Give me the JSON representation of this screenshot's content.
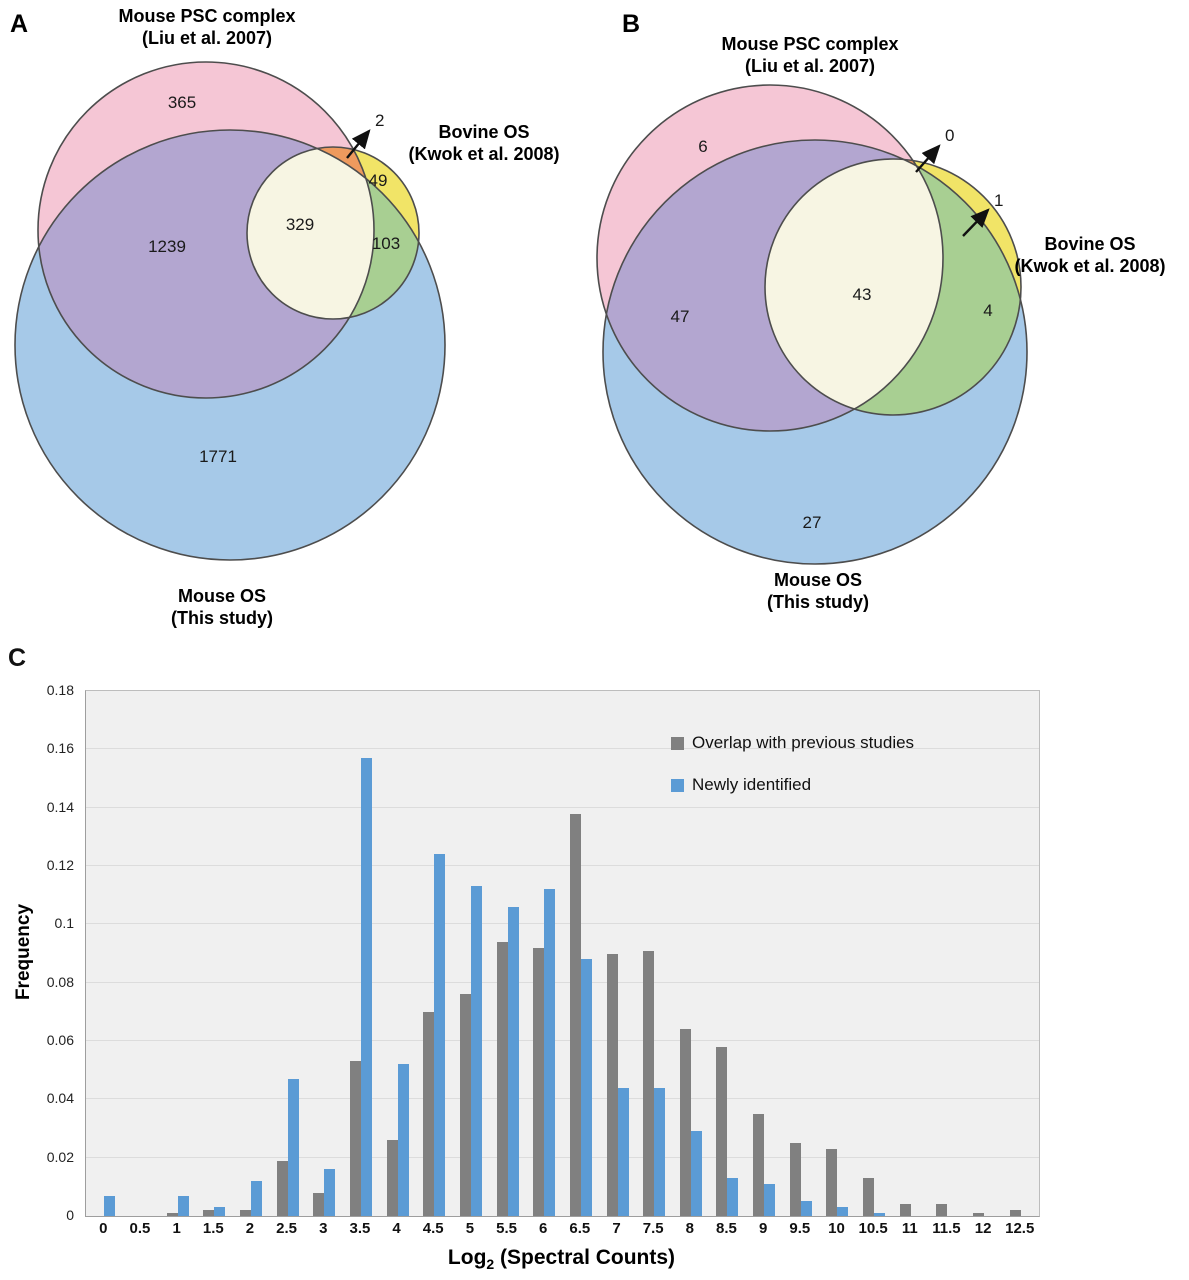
{
  "figure": {
    "panel_a": {
      "label": "A",
      "psc_title_line1": "Mouse PSC complex",
      "psc_title_line2": "(Liu et al. 2007)",
      "bovine_title_line1": "Bovine OS",
      "bovine_title_line2": "(Kwok et al. 2008)",
      "mouse_title_line1": "Mouse OS",
      "mouse_title_line2": "(This study)",
      "counts": {
        "psc_only": "365",
        "psc_bovine": "2",
        "bovine_only": "49",
        "psc_mouse": "1239",
        "triple": "329",
        "bovine_mouse": "103",
        "mouse_only": "1771"
      }
    },
    "panel_b": {
      "label": "B",
      "psc_title_line1": "Mouse PSC complex",
      "psc_title_line2": "(Liu et al. 2007)",
      "bovine_title_line1": "Bovine OS",
      "bovine_title_line2": "(Kwok et al. 2008)",
      "mouse_title_line1": "Mouse OS",
      "mouse_title_line2": "(This study)",
      "counts": {
        "psc_only": "6",
        "psc_bovine": "0",
        "bovine_only": "1",
        "psc_mouse": "47",
        "triple": "43",
        "bovine_mouse": "4",
        "mouse_only": "27"
      }
    },
    "panel_c": {
      "label": "C",
      "ylabel": "Frequency",
      "xlabel_main": "Log",
      "xlabel_sub": "2",
      "xlabel_rest": " (Spectral Counts)"
    }
  },
  "colors": {
    "pink": "#f5c6d5",
    "purple": "#b3a6d0",
    "blue": "#a6c9e8",
    "yellow": "#f1e467",
    "green": "#a8cf92",
    "cream": "#f7f5e3",
    "orange": "#ee9a5e",
    "outline": "#4d4d4d",
    "arrow": "#111111"
  },
  "chart_data": [
    {
      "type": "venn",
      "panel": "A",
      "sets": [
        "Mouse PSC complex (Liu et al. 2007)",
        "Mouse OS (This study)",
        "Bovine OS (Kwok et al. 2008)"
      ],
      "regions": {
        "psc_only": 365,
        "psc_and_bovine_only": 2,
        "bovine_only": 49,
        "psc_and_mouseos_only": 1239,
        "triple_overlap": 329,
        "bovine_and_mouseos_only": 103,
        "mouseos_only": 1771
      }
    },
    {
      "type": "venn",
      "panel": "B",
      "sets": [
        "Mouse PSC complex (Liu et al. 2007)",
        "Mouse OS (This study)",
        "Bovine OS (Kwok et al. 2008)"
      ],
      "regions": {
        "psc_only": 6,
        "psc_and_bovine_only": 0,
        "bovine_only": 1,
        "psc_and_mouseos_only": 47,
        "triple_overlap": 43,
        "bovine_and_mouseos_only": 4,
        "mouseos_only": 27
      }
    },
    {
      "type": "bar",
      "panel": "C",
      "title": "",
      "xlabel": "Log2 (Spectral Counts)",
      "ylabel": "Frequency",
      "ylim": [
        0,
        0.18
      ],
      "ytick_step": 0.02,
      "grid": true,
      "legend_position": "inside top-right",
      "categories": [
        "0",
        "0.5",
        "1",
        "1.5",
        "2",
        "2.5",
        "3",
        "3.5",
        "4",
        "4.5",
        "5",
        "5.5",
        "6",
        "6.5",
        "7",
        "7.5",
        "8",
        "8.5",
        "9",
        "9.5",
        "10",
        "10.5",
        "11",
        "11.5",
        "12",
        "12.5"
      ],
      "series": [
        {
          "key": "overlap",
          "name": "Overlap with previous studies",
          "color": "#808080",
          "values": [
            0,
            0,
            0.001,
            0.002,
            0.002,
            0.019,
            0.008,
            0.053,
            0.026,
            0.07,
            0.076,
            0.094,
            0.092,
            0.138,
            0.09,
            0.091,
            0.064,
            0.058,
            0.035,
            0.025,
            0.023,
            0.013,
            0.004,
            0.004,
            0.001,
            0.002
          ]
        },
        {
          "key": "newly",
          "name": "Newly identified",
          "color": "#5b9bd5",
          "values": [
            0.007,
            0,
            0.007,
            0.003,
            0.012,
            0.047,
            0.016,
            0.157,
            0.052,
            0.124,
            0.113,
            0.106,
            0.112,
            0.088,
            0.044,
            0.044,
            0.029,
            0.013,
            0.011,
            0.005,
            0.003,
            0.001,
            0,
            0,
            0,
            0
          ]
        }
      ]
    }
  ]
}
